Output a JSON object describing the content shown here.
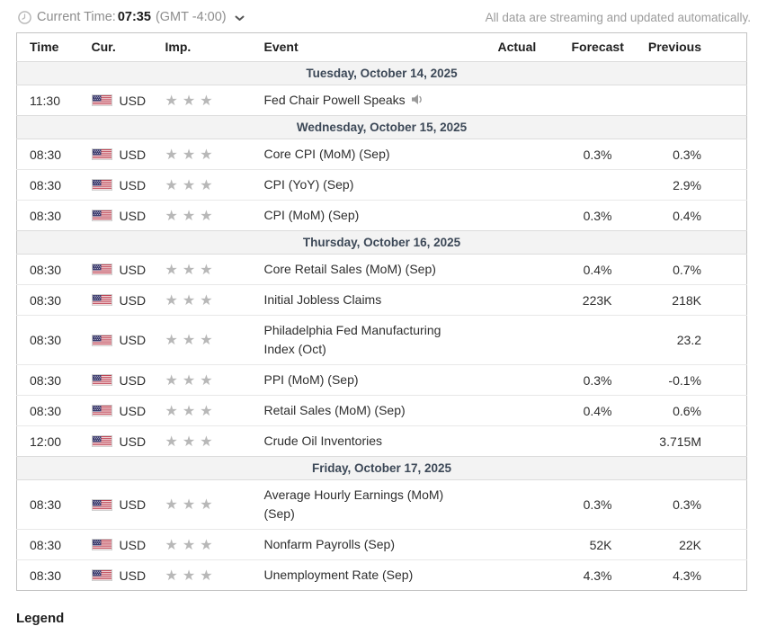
{
  "topbar": {
    "current_time_label": "Current Time:",
    "current_time_value": "07:35",
    "timezone": "(GMT -4:00)",
    "streaming_note": "All data are streaming and updated automatically."
  },
  "table": {
    "columns": [
      "Time",
      "Cur.",
      "Imp.",
      "Event",
      "Actual",
      "Forecast",
      "Previous"
    ],
    "sections": [
      {
        "date": "Tuesday, October 14, 2025",
        "rows": [
          {
            "time": "11:30",
            "currency": "USD",
            "flag": "us-flag",
            "importance": 3,
            "event": "Fed Chair Powell Speaks",
            "speaker_icon": true,
            "actual": "",
            "forecast": "",
            "previous": ""
          }
        ]
      },
      {
        "date": "Wednesday, October 15, 2025",
        "rows": [
          {
            "time": "08:30",
            "currency": "USD",
            "flag": "us-flag",
            "importance": 3,
            "event": "Core CPI (MoM) (Sep)",
            "speaker_icon": false,
            "actual": "",
            "forecast": "0.3%",
            "previous": "0.3%"
          },
          {
            "time": "08:30",
            "currency": "USD",
            "flag": "us-flag",
            "importance": 3,
            "event": "CPI (YoY) (Sep)",
            "speaker_icon": false,
            "actual": "",
            "forecast": "",
            "previous": "2.9%"
          },
          {
            "time": "08:30",
            "currency": "USD",
            "flag": "us-flag",
            "importance": 3,
            "event": "CPI (MoM) (Sep)",
            "speaker_icon": false,
            "actual": "",
            "forecast": "0.3%",
            "previous": "0.4%"
          }
        ]
      },
      {
        "date": "Thursday, October 16, 2025",
        "rows": [
          {
            "time": "08:30",
            "currency": "USD",
            "flag": "us-flag",
            "importance": 3,
            "event": "Core Retail Sales (MoM) (Sep)",
            "speaker_icon": false,
            "actual": "",
            "forecast": "0.4%",
            "previous": "0.7%"
          },
          {
            "time": "08:30",
            "currency": "USD",
            "flag": "us-flag",
            "importance": 3,
            "event": "Initial Jobless Claims",
            "speaker_icon": false,
            "actual": "",
            "forecast": "223K",
            "previous": "218K"
          },
          {
            "time": "08:30",
            "currency": "USD",
            "flag": "us-flag",
            "importance": 3,
            "event": "Philadelphia Fed Manufacturing Index (Oct)",
            "speaker_icon": false,
            "actual": "",
            "forecast": "",
            "previous": "23.2"
          },
          {
            "time": "08:30",
            "currency": "USD",
            "flag": "us-flag",
            "importance": 3,
            "event": "PPI (MoM) (Sep)",
            "speaker_icon": false,
            "actual": "",
            "forecast": "0.3%",
            "previous": "-0.1%"
          },
          {
            "time": "08:30",
            "currency": "USD",
            "flag": "us-flag",
            "importance": 3,
            "event": "Retail Sales (MoM) (Sep)",
            "speaker_icon": false,
            "actual": "",
            "forecast": "0.4%",
            "previous": "0.6%"
          },
          {
            "time": "12:00",
            "currency": "USD",
            "flag": "us-flag",
            "importance": 3,
            "event": "Crude Oil Inventories",
            "speaker_icon": false,
            "actual": "",
            "forecast": "",
            "previous": "3.715M"
          }
        ]
      },
      {
        "date": "Friday, October 17, 2025",
        "rows": [
          {
            "time": "08:30",
            "currency": "USD",
            "flag": "us-flag",
            "importance": 3,
            "event": "Average Hourly Earnings (MoM) (Sep)",
            "speaker_icon": false,
            "actual": "",
            "forecast": "0.3%",
            "previous": "0.3%"
          },
          {
            "time": "08:30",
            "currency": "USD",
            "flag": "us-flag",
            "importance": 3,
            "event": "Nonfarm Payrolls (Sep)",
            "speaker_icon": false,
            "actual": "",
            "forecast": "52K",
            "previous": "22K"
          },
          {
            "time": "08:30",
            "currency": "USD",
            "flag": "us-flag",
            "importance": 3,
            "event": "Unemployment Rate (Sep)",
            "speaker_icon": false,
            "actual": "",
            "forecast": "4.3%",
            "previous": "4.3%"
          }
        ]
      }
    ]
  },
  "legend": {
    "title": "Legend"
  },
  "colors": {
    "star_color": "#b8b8b8",
    "date_row_text": "#3c4857",
    "date_row_bg": "#f3f3f3",
    "table_border": "#c3c3c3"
  }
}
